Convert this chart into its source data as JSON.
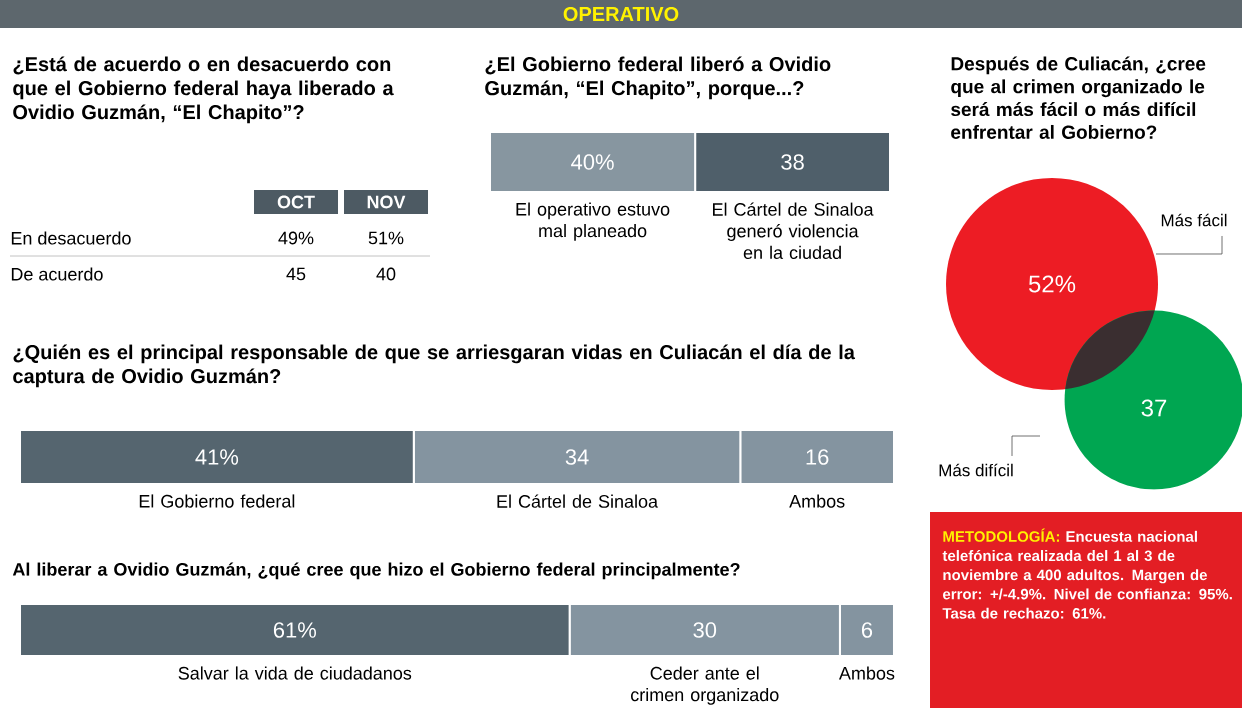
{
  "chart_data": [
    {
      "type": "other",
      "title": "¿Está de acuerdo o en desacuerdo con que el Gobierno federal haya liberado a Ovidio Guzmán, “El Chapito”?",
      "categories": [
        "En desacuerdo",
        "De acuerdo"
      ],
      "series": [
        {
          "name": "OCT",
          "values": [
            49,
            45
          ],
          "value_labels": [
            "49%",
            "45"
          ]
        },
        {
          "name": "NOV",
          "values": [
            51,
            40
          ],
          "value_labels": [
            "51%",
            "40"
          ]
        }
      ],
      "annotations": [
        "OPERATIVO"
      ]
    },
    {
      "type": "bar",
      "orientation": "horizontal",
      "stacked": true,
      "title": "¿El Gobierno federal liberó a Ovidio Guzmán, “El Chapito”, porque...?",
      "categories": [
        null
      ],
      "series": [
        {
          "name": "El operativo estuvo mal planeado",
          "color": "#8796a0",
          "values": [
            40
          ],
          "value_labels": [
            "40%"
          ]
        },
        {
          "name": "El Cártel de Sinaloa generó violencia en la ciudad",
          "color": "#4f5f6a",
          "values": [
            38
          ],
          "value_labels": [
            "38"
          ]
        }
      ]
    },
    {
      "type": "other",
      "title": "Después de Culiacán, ¿cree que al crimen organizado le será más fácil o más difícil enfrentar al Gobierno?",
      "categories": [
        "Más fácil",
        "Más difícil"
      ],
      "values": [
        52,
        37
      ],
      "value_labels": [
        "52%",
        "37"
      ],
      "colors": [
        "#ed1c24",
        "#00a651"
      ],
      "annotations": [
        "METODOLOGÍA:",
        "Encuesta nacional telefónica realizada del 1 al 3 de noviembre a 400 adultos. Margen de error: +/-4.9%. Nivel de confianza: 95%. Tasa de rechazo: 61%."
      ]
    },
    {
      "type": "bar",
      "orientation": "horizontal",
      "stacked": true,
      "title": "¿Quién es el principal responsable de que se arriesgaran vidas en Culiacán el día de la captura de Ovidio Guzmán?",
      "categories": [
        null
      ],
      "series": [
        {
          "name": "El Gobierno federal",
          "color": "#55656f",
          "values": [
            41
          ],
          "value_labels": [
            "41%"
          ]
        },
        {
          "name": "El Cártel de Sinaloa",
          "color": "#8494a0",
          "values": [
            34
          ],
          "value_labels": [
            "34"
          ]
        },
        {
          "name": "Ambos",
          "color": "#8494a0",
          "values": [
            16
          ],
          "value_labels": [
            "16"
          ]
        }
      ]
    },
    {
      "type": "bar",
      "orientation": "horizontal",
      "stacked": true,
      "title": "Al liberar a Ovidio Guzmán, ¿qué cree que hizo el Gobierno federal principalmente?",
      "categories": [
        null
      ],
      "series": [
        {
          "name": "Salvar la vida de ciudadanos",
          "color": "#55656f",
          "values": [
            61
          ],
          "value_labels": [
            "61%"
          ]
        },
        {
          "name": "Ceder ante el crimen organizado",
          "color": "#8494a0",
          "values": [
            30
          ],
          "value_labels": [
            "30"
          ]
        },
        {
          "name": "Ambos",
          "color": "#8494a0",
          "values": [
            6
          ],
          "value_labels": [
            "6"
          ]
        }
      ]
    }
  ]
}
